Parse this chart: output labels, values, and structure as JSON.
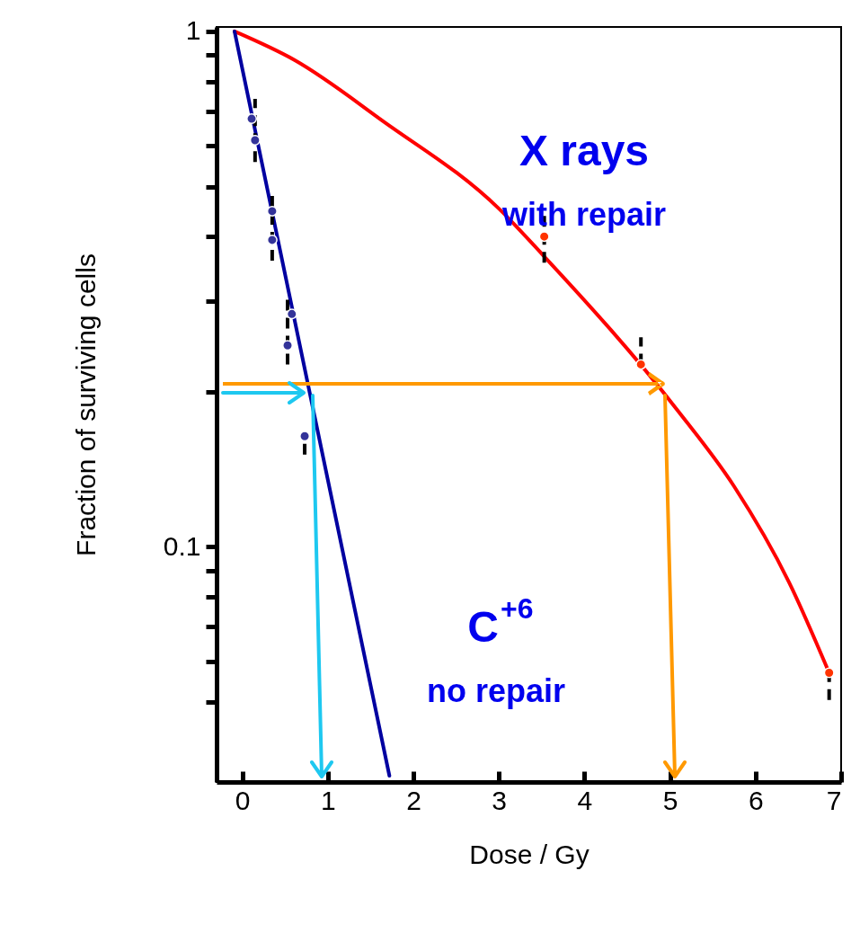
{
  "chart_data": {
    "type": "line",
    "xlabel": "Dose / Gy",
    "ylabel": "Fraction of surviving cells",
    "log": "y",
    "grid": false,
    "xlim": [
      -0.3,
      7
    ],
    "xticks": [
      0,
      1,
      2,
      3,
      4,
      5,
      6,
      7
    ],
    "ylim": [
      0.035,
      1.02
    ],
    "yticks": [
      1,
      {
        "value": 0.9,
        "label": null
      },
      {
        "value": 0.8,
        "label": null
      },
      {
        "value": 0.7,
        "label": null
      },
      {
        "value": 0.6,
        "label": null
      },
      {
        "value": 0.5,
        "label": null
      },
      {
        "value": 0.4,
        "label": null
      },
      {
        "value": 0.3,
        "label": null
      },
      {
        "value": 0.2,
        "label": null
      },
      0.1,
      {
        "value": 0.09,
        "label": null
      },
      {
        "value": 0.08,
        "label": null
      },
      {
        "value": 0.07,
        "label": null
      },
      {
        "value": 0.06,
        "label": null
      },
      {
        "value": 0.05,
        "label": null
      }
    ],
    "annotations": [
      "with repair",
      "no repair"
    ],
    "series": [
      {
        "name": "X rays",
        "color": "#ff0000",
        "x": [
          -0.09,
          0.61,
          1.65,
          3.0,
          3.51,
          5.1,
          5.75,
          6.39,
          6.86
        ],
        "values": [
          1,
          0.88,
          0.669,
          0.453,
          0.369,
          0.183,
          0.131,
          0.0855,
          0.057
        ]
      },
      {
        "name": "C$^{+6}$",
        "color": "#0000a0",
        "x": [
          -0.09,
          1.72
        ],
        "values": [
          1,
          0.036
        ]
      },
      {
        "type": "scatter",
        "marker": "circle",
        "color": "#ff3300",
        "x": [
          3.53,
          4.66,
          6.86
        ],
        "values": [
          0.4,
          0.226,
          0.057
        ],
        "errors": [
          [
            0.356,
            0.453
          ],
          [
            0.226,
            0.255
          ],
          [
            0.0505,
            0.057
          ]
        ]
      },
      {
        "type": "scatter",
        "marker": "circle",
        "color": "#333399",
        "x": [
          0.11,
          0.15,
          0.35,
          0.35,
          0.58,
          0.53,
          0.73
        ],
        "values": [
          0.677,
          0.615,
          0.448,
          0.394,
          0.283,
          0.246,
          0.164
        ],
        "errors": [
          null,
          [
            0.558,
            0.74
          ],
          [
            0.359,
            0.485
          ],
          null,
          null,
          [
            0.226,
            0.306
          ],
          [
            0.151,
            0.164
          ]
        ]
      }
    ]
  }
}
